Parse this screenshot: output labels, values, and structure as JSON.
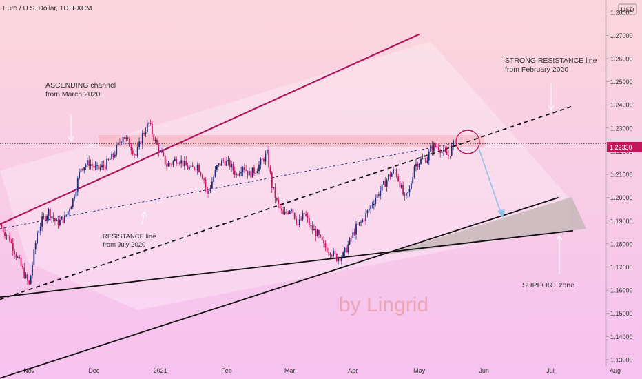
{
  "header": {
    "symbol_title": "Euro / U.S. Dollar, 1D, FXCM",
    "currency": "USD"
  },
  "watermark": "by Lingrid",
  "annotations": {
    "ascending": [
      "ASCENDING channel",
      "from March 2020"
    ],
    "strong_resistance": [
      "STRONG RESISTANCE line",
      "from February 2020"
    ],
    "resistance": [
      "RESISTANCE line",
      "from July 2020"
    ],
    "support": [
      "SUPPORT zone"
    ]
  },
  "colors": {
    "bg_top": "#fbd6dc",
    "bg_bottom": "#f6c2f0",
    "bull": "#1e2a78",
    "bear": "#c2185b",
    "channel": "#b0155a",
    "support_zone": "#c7b9b9",
    "projection": "#8fc3ea"
  },
  "chart_data": {
    "type": "candlestick",
    "symbol": "Euro / U.S. Dollar",
    "timeframe": "1D",
    "exchange": "FXCM",
    "x_ticks": [
      "Nov",
      "Dec",
      "2021",
      "Feb",
      "Mar",
      "Apr",
      "May",
      "Jun",
      "Jul",
      "Aug"
    ],
    "y_ticks": [
      "1.28000",
      "1.27000",
      "1.26000",
      "1.25000",
      "1.24000",
      "1.23000",
      "1.22000",
      "1.21000",
      "1.20000",
      "1.19000",
      "1.18000",
      "1.17000",
      "1.16000",
      "1.15000",
      "1.14000",
      "1.13000"
    ],
    "ylim": [
      1.127,
      1.2835
    ],
    "current_price": 1.2233,
    "path": [
      [
        0,
        1.188
      ],
      [
        6,
        1.182
      ],
      [
        12,
        1.172
      ],
      [
        18,
        1.162
      ],
      [
        23,
        1.185
      ],
      [
        26,
        1.19
      ],
      [
        30,
        1.194
      ],
      [
        35,
        1.189
      ],
      [
        40,
        1.191
      ],
      [
        45,
        1.199
      ],
      [
        50,
        1.213
      ],
      [
        55,
        1.215
      ],
      [
        60,
        1.212
      ],
      [
        65,
        1.214
      ],
      [
        70,
        1.218
      ],
      [
        76,
        1.227
      ],
      [
        80,
        1.223
      ],
      [
        84,
        1.218
      ],
      [
        88,
        1.227
      ],
      [
        92,
        1.232
      ],
      [
        96,
        1.224
      ],
      [
        100,
        1.218
      ],
      [
        103,
        1.214
      ],
      [
        106,
        1.215
      ],
      [
        110,
        1.217
      ],
      [
        114,
        1.214
      ],
      [
        118,
        1.212
      ],
      [
        122,
        1.214
      ],
      [
        126,
        1.208
      ],
      [
        128,
        1.201
      ],
      [
        130,
        1.205
      ],
      [
        134,
        1.213
      ],
      [
        138,
        1.216
      ],
      [
        142,
        1.214
      ],
      [
        146,
        1.21
      ],
      [
        150,
        1.214
      ],
      [
        154,
        1.21
      ],
      [
        158,
        1.212
      ],
      [
        162,
        1.216
      ],
      [
        165,
        1.219
      ],
      [
        168,
        1.205
      ],
      [
        171,
        1.198
      ],
      [
        175,
        1.192
      ],
      [
        180,
        1.196
      ],
      [
        184,
        1.188
      ],
      [
        188,
        1.193
      ],
      [
        192,
        1.187
      ],
      [
        196,
        1.184
      ],
      [
        200,
        1.179
      ],
      [
        204,
        1.177
      ],
      [
        208,
        1.174
      ],
      [
        212,
        1.175
      ],
      [
        216,
        1.181
      ],
      [
        220,
        1.187
      ],
      [
        224,
        1.19
      ],
      [
        228,
        1.195
      ],
      [
        232,
        1.2
      ],
      [
        236,
        1.204
      ],
      [
        240,
        1.209
      ],
      [
        244,
        1.212
      ],
      [
        247,
        1.206
      ],
      [
        250,
        1.199
      ],
      [
        253,
        1.203
      ],
      [
        256,
        1.214
      ],
      [
        260,
        1.216
      ],
      [
        264,
        1.217
      ],
      [
        266,
        1.221
      ],
      [
        268,
        1.222
      ],
      [
        271,
        1.222
      ],
      [
        274,
        1.219
      ],
      [
        277,
        1.218
      ],
      [
        280,
        1.223
      ]
    ],
    "lines": [
      {
        "name": "ASCENDING channel",
        "from": [
          0,
          1.1885
        ],
        "to": [
          259,
          1.2705
        ]
      },
      {
        "name": "STRONG RESISTANCE line",
        "from": [
          0,
          1.156
        ],
        "to": [
          354,
          1.2395
        ]
      },
      {
        "name": "RESISTANCE line",
        "from": [
          0,
          1.1865
        ],
        "to": [
          280,
          1.2233
        ]
      },
      {
        "name": "SUPPORT zone upper",
        "from": [
          0,
          1.122
        ],
        "to": [
          345,
          1.2
        ],
        "ls": "solid"
      },
      {
        "name": "SUPPORT zone lower",
        "from": [
          0,
          1.157
        ],
        "to": [
          354,
          1.1857
        ],
        "ls": "solid"
      }
    ]
  }
}
